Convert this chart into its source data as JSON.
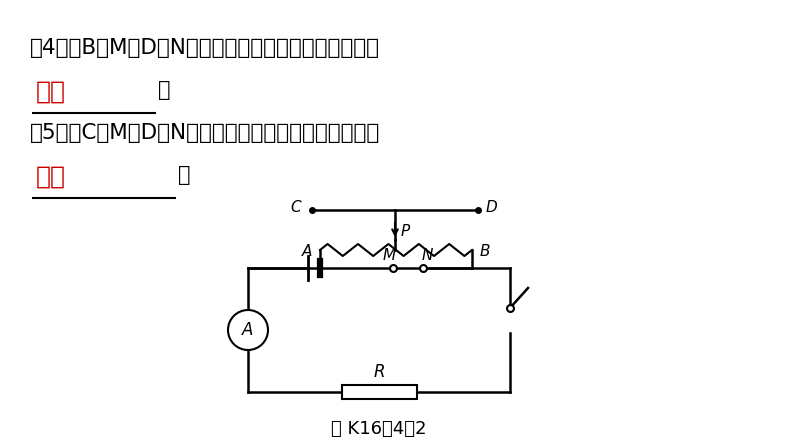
{
  "bg_color": "#FFFFFF",
  "text_color": "#000000",
  "red_color": "#CC0000",
  "line4_text": "（4）当B接M，D接N时，滑片向左移动，电流表示数将",
  "answer4": "变小",
  "line5_text": "（5）当C接M，D接N时，滑片向右移动，电流表示数将",
  "answer5": "不变",
  "caption": "图 K16－4－2",
  "figsize": [
    7.94,
    4.47
  ],
  "dpi": 100
}
